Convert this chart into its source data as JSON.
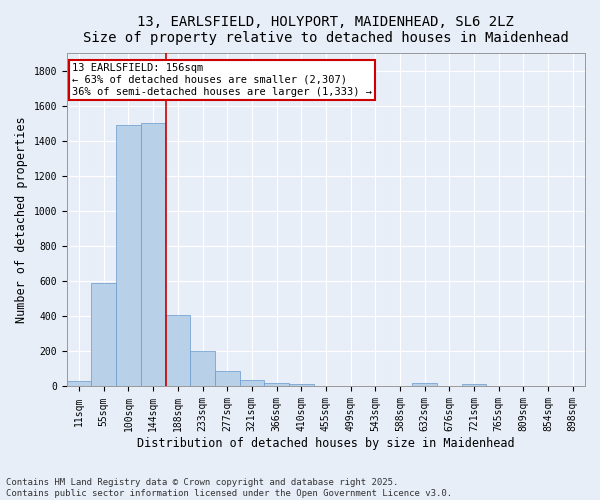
{
  "title_line1": "13, EARLSFIELD, HOLYPORT, MAIDENHEAD, SL6 2LZ",
  "title_line2": "Size of property relative to detached houses in Maidenhead",
  "xlabel": "Distribution of detached houses by size in Maidenhead",
  "ylabel": "Number of detached properties",
  "bar_categories": [
    "11sqm",
    "55sqm",
    "100sqm",
    "144sqm",
    "188sqm",
    "233sqm",
    "277sqm",
    "321sqm",
    "366sqm",
    "410sqm",
    "455sqm",
    "499sqm",
    "543sqm",
    "588sqm",
    "632sqm",
    "676sqm",
    "721sqm",
    "765sqm",
    "809sqm",
    "854sqm",
    "898sqm"
  ],
  "bar_values": [
    30,
    590,
    1490,
    1500,
    410,
    200,
    90,
    35,
    20,
    15,
    5,
    0,
    0,
    0,
    20,
    0,
    15,
    0,
    0,
    0,
    0
  ],
  "bar_color": "#b8d0e8",
  "bar_edgecolor": "#6699cc",
  "background_color": "#e8eef8",
  "grid_color": "#ffffff",
  "vline_color": "#cc0000",
  "annotation_line1": "13 EARLSFIELD: 156sqm",
  "annotation_line2": "← 63% of detached houses are smaller (2,307)",
  "annotation_line3": "36% of semi-detached houses are larger (1,333) →",
  "annotation_box_facecolor": "#ffffff",
  "annotation_box_edgecolor": "#cc0000",
  "ylim": [
    0,
    1900
  ],
  "yticks": [
    0,
    200,
    400,
    600,
    800,
    1000,
    1200,
    1400,
    1600,
    1800
  ],
  "footnote_line1": "Contains HM Land Registry data © Crown copyright and database right 2025.",
  "footnote_line2": "Contains public sector information licensed under the Open Government Licence v3.0.",
  "title_fontsize": 10,
  "axis_label_fontsize": 8.5,
  "tick_fontsize": 7,
  "annotation_fontsize": 7.5,
  "footnote_fontsize": 6.5
}
